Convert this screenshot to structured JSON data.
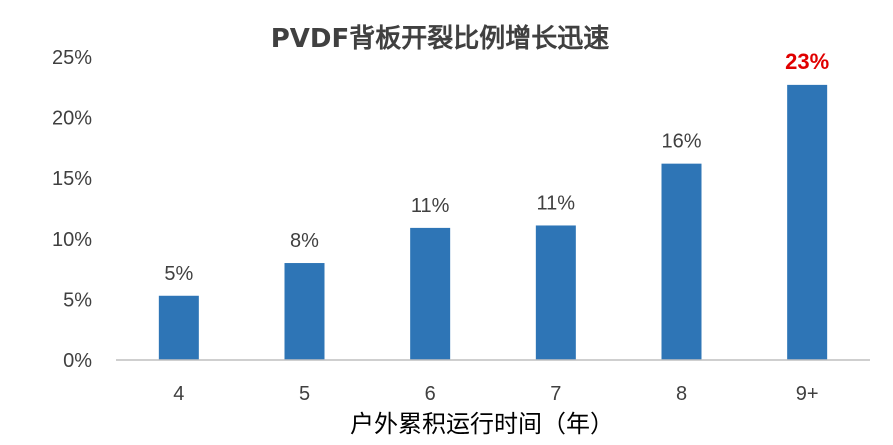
{
  "chart_data": {
    "type": "bar",
    "title": "PVDF背板开裂比例增长迅速",
    "xlabel": "户外累积运行时间（年）",
    "ylabel": "",
    "categories": [
      "4",
      "5",
      "6",
      "7",
      "8",
      "9+"
    ],
    "values": [
      5.3,
      8.0,
      10.9,
      11.1,
      16.2,
      22.7
    ],
    "data_labels": [
      "5%",
      "8%",
      "11%",
      "11%",
      "16%",
      "23%"
    ],
    "highlight_index": 5,
    "ylim": [
      0,
      25
    ],
    "yticks": [
      0,
      5,
      10,
      15,
      20,
      25
    ],
    "ytick_labels": [
      "0%",
      "5%",
      "10%",
      "15%",
      "20%",
      "25%"
    ],
    "grid": false,
    "legend": "none",
    "colors": {
      "bar": "#2e75b6",
      "highlight_label": "#e00000",
      "text": "#404040",
      "axis": "#bfbfbf"
    }
  }
}
